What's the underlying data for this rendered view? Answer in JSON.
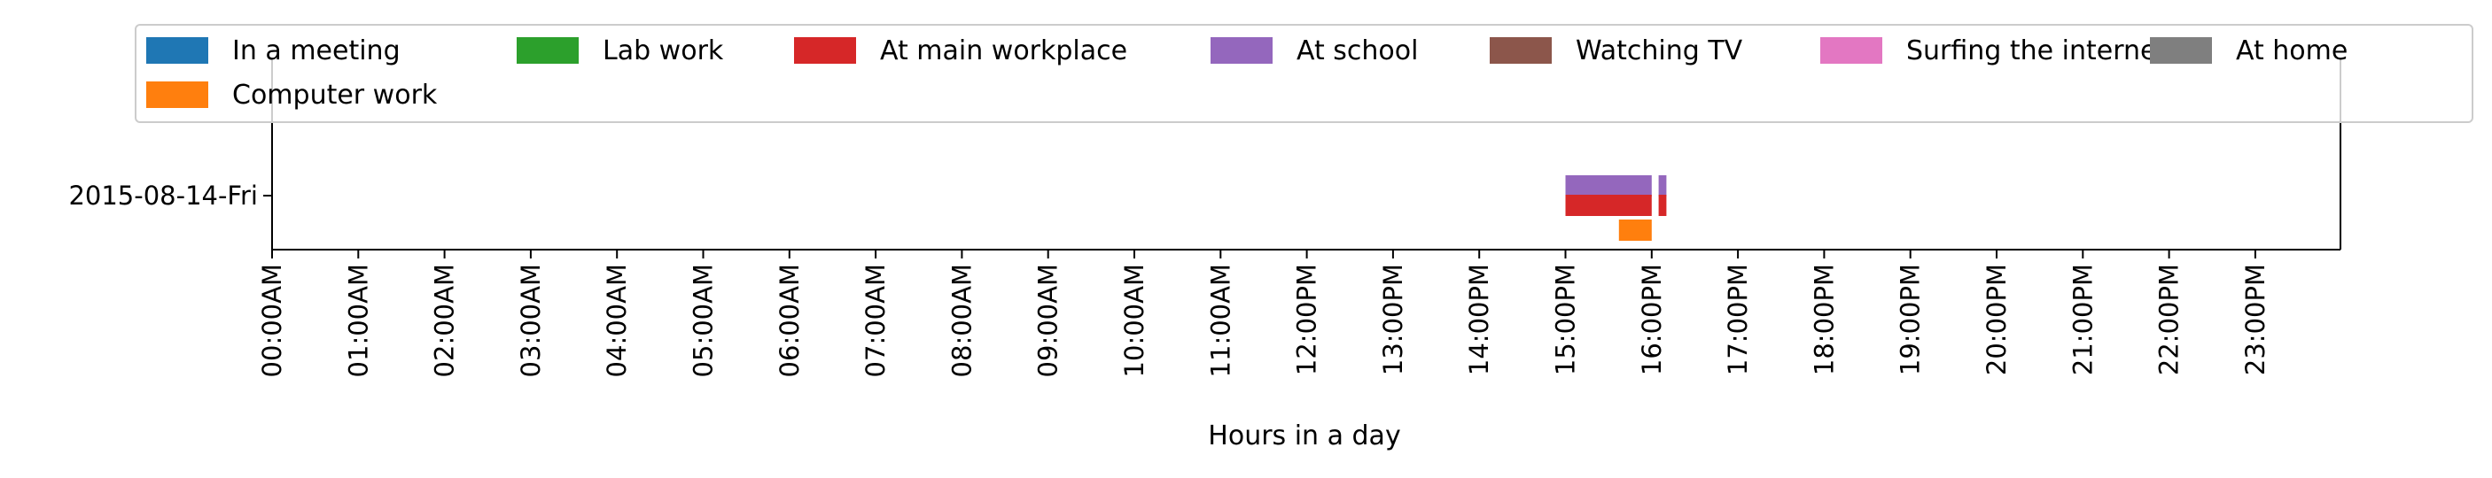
{
  "chart_data": {
    "type": "timeline",
    "xlabel": "Hours in a day",
    "ylabel": "",
    "xlim_hours": [
      0,
      24
    ],
    "x_tick_labels": [
      "00:00AM",
      "01:00AM",
      "02:00AM",
      "03:00AM",
      "04:00AM",
      "05:00AM",
      "06:00AM",
      "07:00AM",
      "08:00AM",
      "09:00AM",
      "10:00AM",
      "11:00AM",
      "12:00PM",
      "13:00PM",
      "14:00PM",
      "15:00PM",
      "16:00PM",
      "17:00PM",
      "18:00PM",
      "19:00PM",
      "20:00PM",
      "21:00PM",
      "22:00PM",
      "23:00PM"
    ],
    "days": [
      "2015-08-14-Fri"
    ],
    "legend_position": "top",
    "grid": false,
    "categories": [
      {
        "name": "In a meeting",
        "color": "#1f77b4"
      },
      {
        "name": "Computer work",
        "color": "#ff7f0e"
      },
      {
        "name": "Lab work",
        "color": "#2ca02c"
      },
      {
        "name": "At main workplace",
        "color": "#d62728"
      },
      {
        "name": "At school",
        "color": "#9467bd"
      },
      {
        "name": "Watching TV",
        "color": "#8c564b"
      },
      {
        "name": "Surfing the internet",
        "color": "#e377c2"
      },
      {
        "name": "At home",
        "color": "#7f7f7f"
      }
    ],
    "intervals": [
      {
        "day": "2015-08-14-Fri",
        "category": "At school",
        "start_hour": 15.0,
        "end_hour": 16.0
      },
      {
        "day": "2015-08-14-Fri",
        "category": "At school",
        "start_hour": 16.08,
        "end_hour": 16.17
      },
      {
        "day": "2015-08-14-Fri",
        "category": "At main workplace",
        "start_hour": 15.0,
        "end_hour": 16.0
      },
      {
        "day": "2015-08-14-Fri",
        "category": "At main workplace",
        "start_hour": 16.08,
        "end_hour": 16.17
      },
      {
        "day": "2015-08-14-Fri",
        "category": "Computer work",
        "start_hour": 15.62,
        "end_hour": 16.0
      }
    ]
  }
}
